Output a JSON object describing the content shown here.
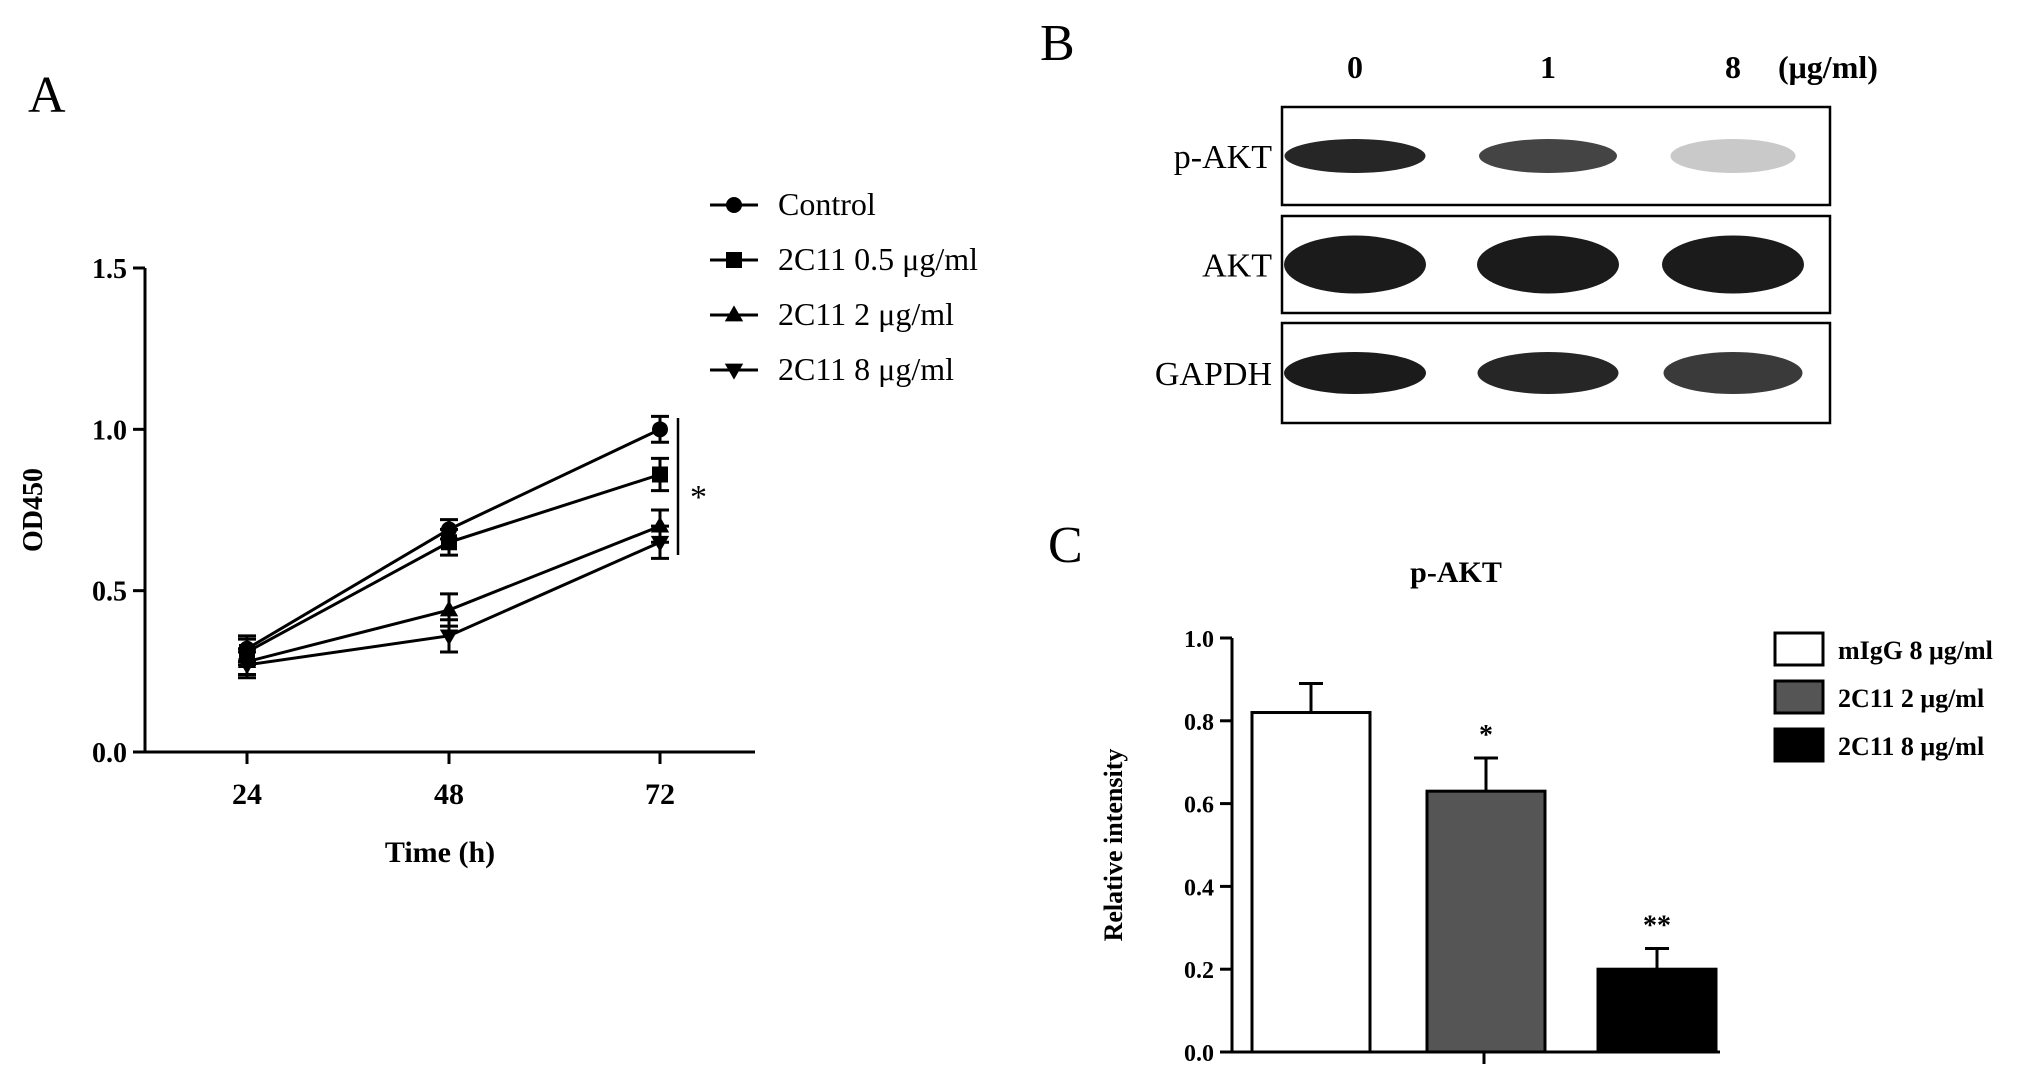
{
  "panels": {
    "A": "A",
    "B": "B",
    "C": "C"
  },
  "chart_data": [
    {
      "type": "line",
      "panel": "A",
      "title": "",
      "xlabel": "Time (h)",
      "ylabel": "OD450",
      "x": [
        24,
        48,
        72
      ],
      "xticks": [
        "24",
        "48",
        "72"
      ],
      "yticks": [
        "0.0",
        "0.5",
        "1.0",
        "1.5"
      ],
      "ylim": [
        0,
        1.5
      ],
      "legend_position": "top-right",
      "annotation": "*",
      "series": [
        {
          "name": "Control",
          "marker": "circle",
          "values": [
            0.32,
            0.69,
            1.0
          ],
          "errors": [
            0.04,
            0.03,
            0.04
          ]
        },
        {
          "name": "2C11 0.5 μg/ml",
          "marker": "square",
          "values": [
            0.31,
            0.65,
            0.86
          ],
          "errors": [
            0.04,
            0.04,
            0.05
          ]
        },
        {
          "name": "2C11 2 μg/ml",
          "marker": "triangle-up",
          "values": [
            0.28,
            0.44,
            0.7
          ],
          "errors": [
            0.04,
            0.05,
            0.05
          ]
        },
        {
          "name": "2C11 8 μg/ml",
          "marker": "triangle-down",
          "values": [
            0.27,
            0.36,
            0.65
          ],
          "errors": [
            0.04,
            0.05,
            0.05
          ]
        }
      ]
    },
    {
      "type": "bar",
      "panel": "C",
      "title": "p-AKT",
      "xlabel": "",
      "ylabel": "Relative intensity",
      "categories": [
        "mIgG 8 μg/ml",
        "2C11 2 μg/ml",
        "2C11 8 μg/ml"
      ],
      "values": [
        0.82,
        0.63,
        0.2
      ],
      "errors": [
        0.07,
        0.08,
        0.05
      ],
      "significance": [
        "",
        "*",
        "**"
      ],
      "colors": [
        "#ffffff",
        "#555555",
        "#000000"
      ],
      "yticks": [
        "0.0",
        "0.2",
        "0.4",
        "0.6",
        "0.8",
        "1.0"
      ],
      "ylim": [
        0,
        1.0
      ],
      "legend_position": "right"
    }
  ],
  "blot": {
    "unit": "(μg/ml)",
    "doses": [
      "0",
      "1",
      "8"
    ],
    "rows": [
      {
        "label": "p-AKT",
        "intensities": [
          0.95,
          0.8,
          0.15
        ]
      },
      {
        "label": "AKT",
        "intensities": [
          1.0,
          1.0,
          1.0
        ]
      },
      {
        "label": "GAPDH",
        "intensities": [
          1.0,
          0.95,
          0.85
        ]
      }
    ]
  }
}
